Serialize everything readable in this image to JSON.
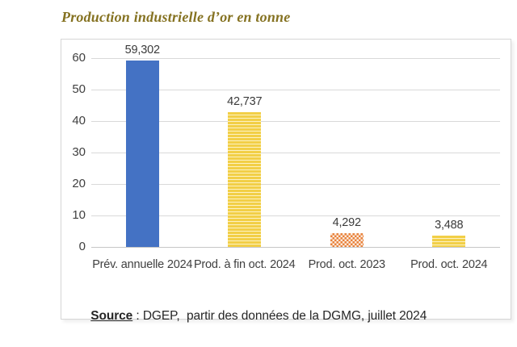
{
  "title": {
    "text": "Production industrielle d’or en tonne",
    "color": "#857221"
  },
  "source": {
    "label": "Source",
    "rest": " : DGEP,  partir des données de la DGMG, juillet 2024"
  },
  "colors": {
    "grid_line": "#d9d9d9",
    "axis_line": "#c6c6c6",
    "bar_blue": "#4472c4",
    "bar_yellow": "#f2cf47",
    "bar_yellow_stripe_bg": "#fdf2c2",
    "bar_orange": "#e8823c",
    "bar_orange_checker_bg": "#fbeadd",
    "label_text": "#3a3a3a"
  },
  "chart_data": {
    "type": "bar",
    "title": "Production industrielle d’or en tonne",
    "categories": [
      "Prév. annuelle 2024",
      "Prod. à fin oct. 2024",
      "Prod. oct. 2023",
      "Prod. oct. 2024"
    ],
    "values": [
      59.302,
      42.737,
      4.292,
      3.488
    ],
    "value_labels": [
      "59,302",
      "42,737",
      "4,292",
      "3,488"
    ],
    "xlabel": "",
    "ylabel": "",
    "ylim": [
      0,
      60
    ],
    "yticks": [
      0,
      10,
      20,
      30,
      40,
      50,
      60
    ],
    "grid": true,
    "legend": false,
    "bar_styles": [
      {
        "pattern": "solid",
        "color_key": "bar_blue"
      },
      {
        "pattern": "horizontal-stripes",
        "color_key": "bar_yellow"
      },
      {
        "pattern": "checker",
        "color_key": "bar_orange"
      },
      {
        "pattern": "horizontal-stripes",
        "color_key": "bar_yellow"
      }
    ],
    "source": "Source : DGEP,  partir des données de la DGMG, juillet 2024"
  }
}
